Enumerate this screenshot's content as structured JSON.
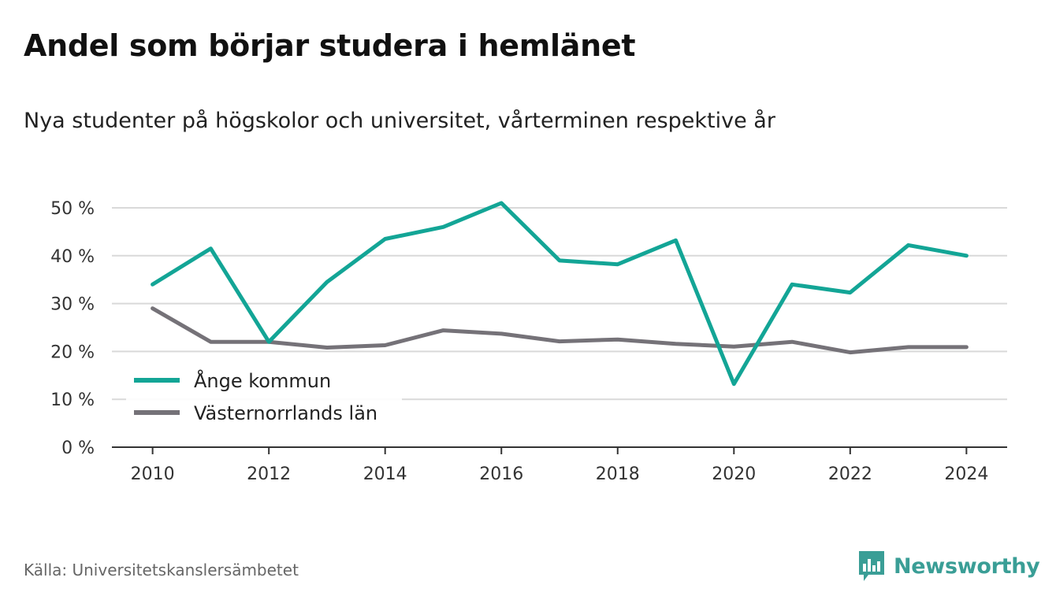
{
  "title": "Andel som börjar studera i hemlänet",
  "subtitle": "Nya studenter på högskolor och universitet, vårterminen respektive år",
  "source": "Källa: Universitetskanslersämbetet",
  "brand": {
    "name": "Newsworthy",
    "icon": "newsworthy-logo-icon",
    "color": "#3a9e96"
  },
  "chart_data": {
    "type": "line",
    "title": "Andel som börjar studera i hemlänet",
    "subtitle": "Nya studenter på högskolor och universitet, vårterminen respektive år",
    "xlabel": "",
    "ylabel": "",
    "x": [
      2010,
      2011,
      2012,
      2013,
      2014,
      2015,
      2016,
      2017,
      2018,
      2019,
      2020,
      2021,
      2022,
      2023,
      2024
    ],
    "xticks": [
      2010,
      2012,
      2014,
      2016,
      2018,
      2020,
      2022,
      2024
    ],
    "xlim": [
      2009.3,
      2024.7
    ],
    "ylim": [
      0,
      50
    ],
    "yticks": [
      0,
      10,
      20,
      30,
      40,
      50
    ],
    "ytick_labels": [
      "0 %",
      "10 %",
      "20 %",
      "30 %",
      "40 %",
      "50 %"
    ],
    "grid": "horizontal",
    "legend": "inside-lower-left",
    "series": [
      {
        "name": "Ånge kommun",
        "color": "#13a596",
        "values": [
          34,
          41.5,
          22,
          34.5,
          43.5,
          46,
          51,
          39,
          38.2,
          43.2,
          13.2,
          34,
          32.3,
          42.2,
          40
        ]
      },
      {
        "name": "Västernorrlands län",
        "color": "#757278",
        "values": [
          29,
          22,
          22,
          20.8,
          21.3,
          24.4,
          23.7,
          22.1,
          22.5,
          21.6,
          21,
          22,
          19.8,
          20.9,
          20.9
        ]
      }
    ]
  }
}
